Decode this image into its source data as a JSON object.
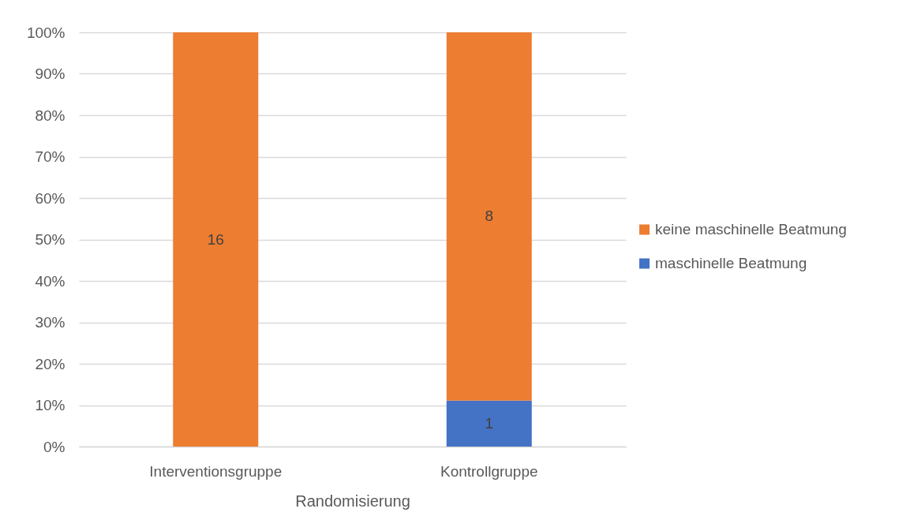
{
  "chart_data": {
    "type": "bar",
    "stacked": true,
    "xlabel": "Randomisierung",
    "categories": [
      "Interventionsgruppe",
      "Kontrollgruppe"
    ],
    "series": [
      {
        "name": "maschinelle Beatmung",
        "color": "#4472c4",
        "values": [
          0,
          11.1
        ]
      },
      {
        "name": "keine maschinelle Beatmung",
        "color": "#ed7d31",
        "values": [
          100,
          88.9
        ]
      }
    ],
    "annotations": [
      "16",
      "8",
      "1"
    ],
    "ylim": [
      0,
      100
    ],
    "yticks": [
      {
        "value": 0,
        "label": "0%"
      },
      {
        "value": 10,
        "label": "10%"
      },
      {
        "value": 20,
        "label": "20%"
      },
      {
        "value": 30,
        "label": "30%"
      },
      {
        "value": 40,
        "label": "40%"
      },
      {
        "value": 50,
        "label": "50%"
      },
      {
        "value": 60,
        "label": "60%"
      },
      {
        "value": 70,
        "label": "70%"
      },
      {
        "value": 80,
        "label": "80%"
      },
      {
        "value": 90,
        "label": "90%"
      },
      {
        "value": 100,
        "label": "100%"
      }
    ],
    "grid": "y",
    "legend": "right"
  }
}
